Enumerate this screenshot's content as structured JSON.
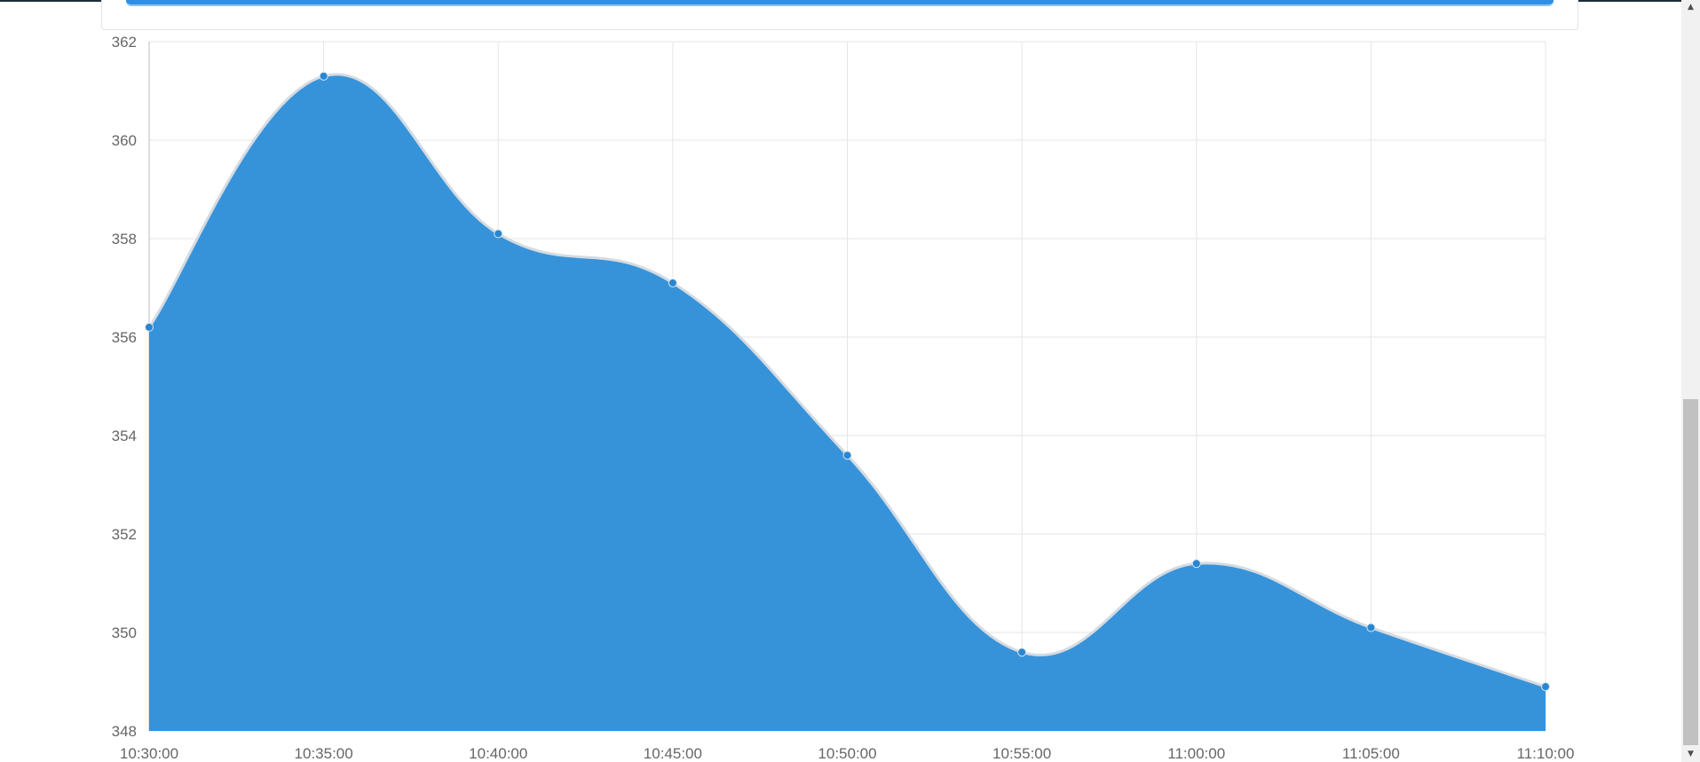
{
  "chart_data": {
    "type": "area",
    "title": "",
    "xlabel": "",
    "ylabel": "",
    "x": [
      "10:30:00",
      "10:35:00",
      "10:40:00",
      "10:45:00",
      "10:50:00",
      "10:55:00",
      "11:00:00",
      "11:05:00",
      "11:10:00"
    ],
    "series": [
      {
        "values": [
          356.2,
          361.3,
          358.1,
          357.1,
          353.6,
          349.6,
          351.4,
          350.1,
          348.9
        ],
        "color": "#2f8fd9"
      }
    ],
    "ylim": [
      348,
      362
    ],
    "yticks": [
      "348",
      "350",
      "352",
      "354",
      "356",
      "358",
      "360",
      "362"
    ],
    "grid": true,
    "legend": "none"
  },
  "colors": {
    "accent": "#2f8fe4",
    "area_fill": "#2f8fd9",
    "grid": "#e5e5e5",
    "tick_text": "#666666"
  },
  "icons": {
    "scroll_up": "arrow-up-icon",
    "scroll_down": "arrow-down-icon"
  }
}
